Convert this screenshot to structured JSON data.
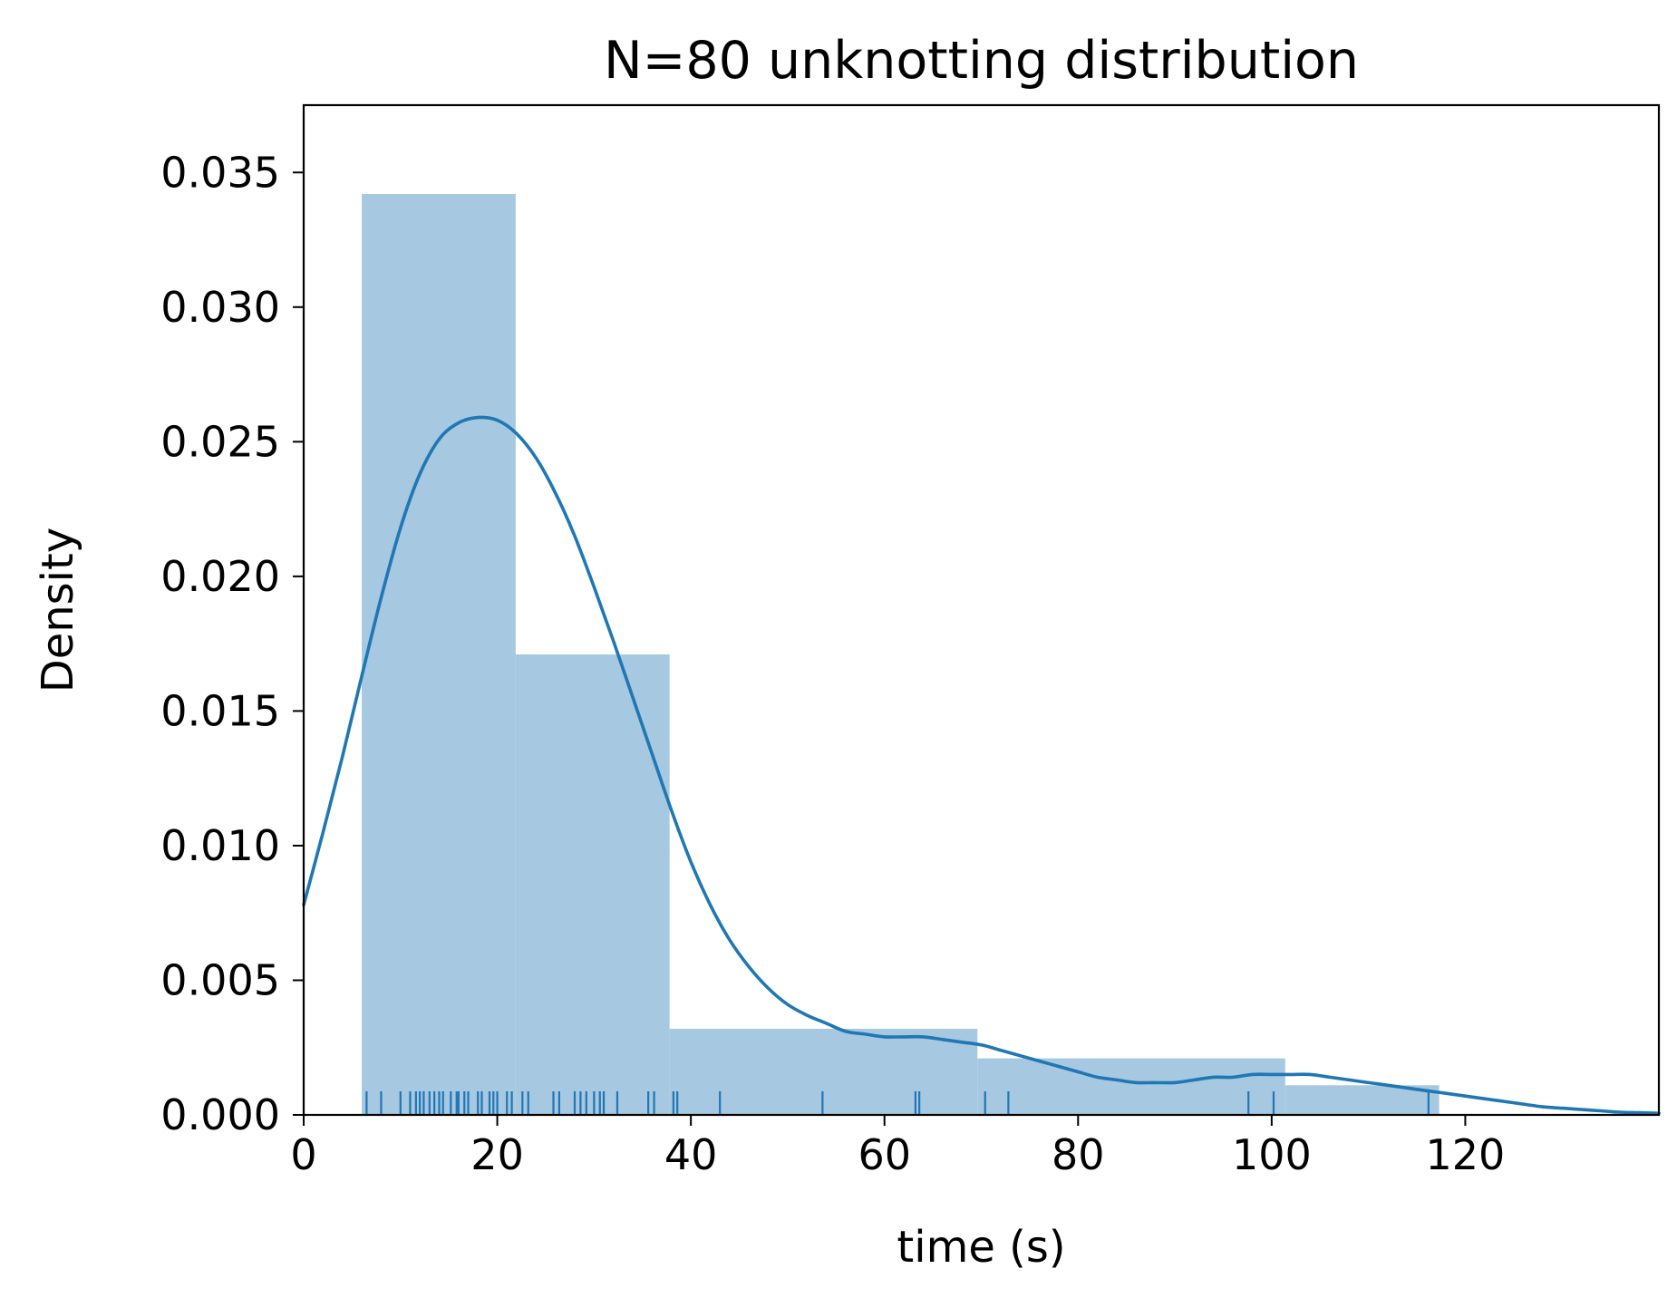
{
  "chart_data": {
    "type": "bar",
    "title": "N=80 unknotting distribution",
    "xlabel": "time (s)",
    "ylabel": "Density",
    "xlim": [
      0,
      140
    ],
    "ylim": [
      0,
      0.0375
    ],
    "x_ticks": [
      {
        "value": 0,
        "label": "0"
      },
      {
        "value": 20,
        "label": "20"
      },
      {
        "value": 40,
        "label": "40"
      },
      {
        "value": 60,
        "label": "60"
      },
      {
        "value": 80,
        "label": "80"
      },
      {
        "value": 100,
        "label": "100"
      },
      {
        "value": 120,
        "label": "120"
      }
    ],
    "y_ticks": [
      {
        "value": 0,
        "label": "0.000"
      },
      {
        "value": 0.005,
        "label": "0.005"
      },
      {
        "value": 0.01,
        "label": "0.010"
      },
      {
        "value": 0.015,
        "label": "0.015"
      },
      {
        "value": 0.02,
        "label": "0.020"
      },
      {
        "value": 0.025,
        "label": "0.025"
      },
      {
        "value": 0.03,
        "label": "0.030"
      },
      {
        "value": 0.035,
        "label": "0.035"
      }
    ],
    "grid": false,
    "legend": false,
    "histogram": {
      "bins": [
        {
          "x0": 6.0,
          "x1": 21.9,
          "density": 0.0342
        },
        {
          "x0": 21.9,
          "x1": 37.8,
          "density": 0.0171
        },
        {
          "x0": 37.8,
          "x1": 69.6,
          "density": 0.0032
        },
        {
          "x0": 69.6,
          "x1": 101.4,
          "density": 0.0021
        },
        {
          "x0": 101.4,
          "x1": 117.3,
          "density": 0.0011
        }
      ],
      "color": "#a6c8e1"
    },
    "kde": {
      "color": "#1f77b4",
      "points": [
        [
          0,
          0.0078
        ],
        [
          2,
          0.0105
        ],
        [
          4,
          0.0133
        ],
        [
          6,
          0.0163
        ],
        [
          8,
          0.0192
        ],
        [
          10,
          0.0218
        ],
        [
          12,
          0.0238
        ],
        [
          14,
          0.0251
        ],
        [
          16,
          0.0257
        ],
        [
          18,
          0.0259
        ],
        [
          20,
          0.0258
        ],
        [
          22,
          0.0253
        ],
        [
          24,
          0.0244
        ],
        [
          26,
          0.0231
        ],
        [
          28,
          0.0215
        ],
        [
          30,
          0.0196
        ],
        [
          32,
          0.0176
        ],
        [
          34,
          0.0155
        ],
        [
          36,
          0.0134
        ],
        [
          38,
          0.0113
        ],
        [
          40,
          0.0094
        ],
        [
          42,
          0.0078
        ],
        [
          44,
          0.0065
        ],
        [
          46,
          0.0055
        ],
        [
          48,
          0.0047
        ],
        [
          50,
          0.0041
        ],
        [
          52,
          0.0037
        ],
        [
          54,
          0.0034
        ],
        [
          56,
          0.0031
        ],
        [
          58,
          0.003
        ],
        [
          60,
          0.0029
        ],
        [
          62,
          0.0029
        ],
        [
          64,
          0.0029
        ],
        [
          66,
          0.0028
        ],
        [
          68,
          0.0027
        ],
        [
          70,
          0.0026
        ],
        [
          72,
          0.0024
        ],
        [
          74,
          0.0022
        ],
        [
          76,
          0.002
        ],
        [
          78,
          0.0018
        ],
        [
          80,
          0.0016
        ],
        [
          82,
          0.0014
        ],
        [
          84,
          0.0013
        ],
        [
          86,
          0.0012
        ],
        [
          88,
          0.0012
        ],
        [
          90,
          0.0012
        ],
        [
          92,
          0.0013
        ],
        [
          94,
          0.0014
        ],
        [
          96,
          0.0014
        ],
        [
          98,
          0.0015
        ],
        [
          100,
          0.0015
        ],
        [
          102,
          0.0015
        ],
        [
          104,
          0.0015
        ],
        [
          106,
          0.0014
        ],
        [
          108,
          0.0013
        ],
        [
          110,
          0.0012
        ],
        [
          112,
          0.0011
        ],
        [
          114,
          0.001
        ],
        [
          116,
          0.0009
        ],
        [
          118,
          0.0008
        ],
        [
          120,
          0.0007
        ],
        [
          122,
          0.0006
        ],
        [
          124,
          0.0005
        ],
        [
          126,
          0.0004
        ],
        [
          128,
          0.0003
        ],
        [
          130,
          0.00025
        ],
        [
          132,
          0.0002
        ],
        [
          134,
          0.00015
        ],
        [
          136,
          0.0001
        ],
        [
          138,
          8e-05
        ],
        [
          140,
          6e-05
        ]
      ]
    },
    "rug": {
      "color": "#1f77b4",
      "values": [
        6.5,
        8.0,
        10.0,
        11.0,
        11.6,
        12.0,
        12.4,
        13.0,
        13.5,
        14.0,
        14.4,
        15.2,
        15.8,
        16.0,
        16.6,
        17.0,
        18.0,
        18.4,
        19.2,
        19.6,
        20.0,
        21.0,
        21.5,
        22.6,
        23.2,
        25.8,
        26.4,
        28.0,
        28.6,
        29.2,
        30.0,
        30.6,
        31.0,
        32.4,
        35.6,
        36.2,
        38.2,
        38.6,
        43.0,
        53.6,
        63.2,
        63.6,
        70.4,
        72.8,
        97.6,
        100.2,
        116.2
      ]
    }
  }
}
